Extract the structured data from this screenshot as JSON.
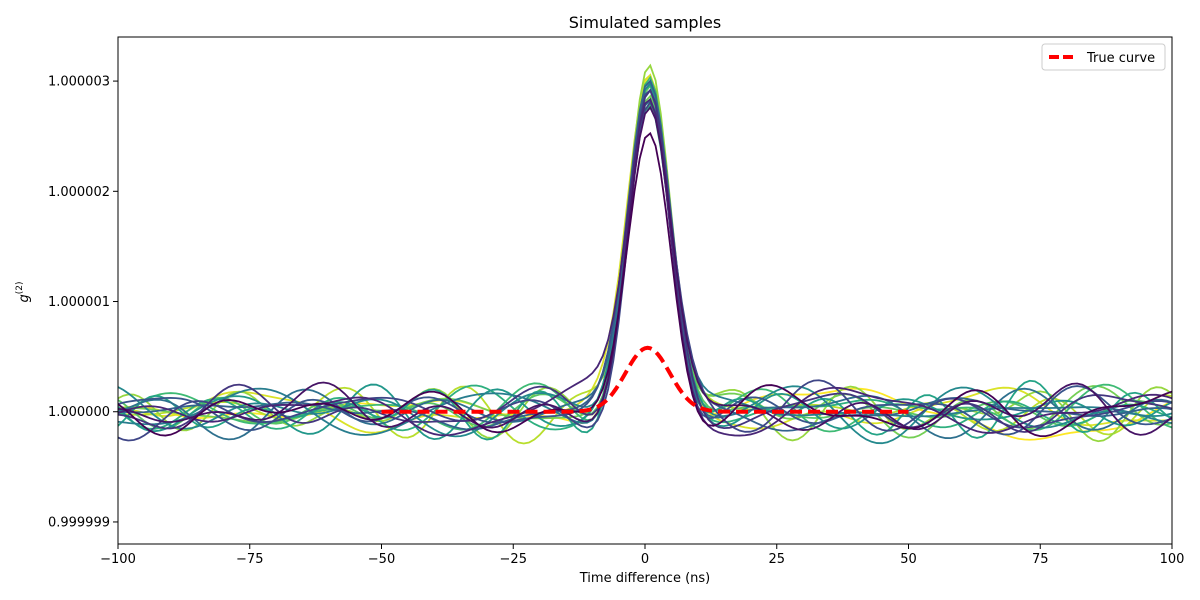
{
  "chart_data": {
    "type": "line",
    "title": "Simulated samples",
    "xlabel": "Time difference (ns)",
    "ylabel_main": "g",
    "ylabel_sup": "(2)",
    "xlim": [
      -100,
      100
    ],
    "ylim": [
      0.9999988,
      1.0000034
    ],
    "x_ticks": [
      -100,
      -75,
      -50,
      -25,
      0,
      25,
      50,
      75,
      100
    ],
    "x_tick_labels": [
      "−100",
      "−75",
      "−50",
      "−25",
      "0",
      "25",
      "50",
      "75",
      "100"
    ],
    "y_ticks": [
      0.999999,
      1.0,
      1.000001,
      1.000002,
      1.000003
    ],
    "y_tick_labels": [
      "0.999999",
      "1.000000",
      "1.000001",
      "1.000002",
      "1.000003"
    ],
    "grid": false,
    "legend": {
      "position": "top-right",
      "entries": [
        {
          "label": "True curve",
          "color": "#ff0000",
          "style": "dashed"
        }
      ]
    },
    "true_curve": {
      "name": "True curve",
      "color": "#ff0000",
      "x_range": [
        -50,
        50
      ],
      "baseline": 1.0,
      "peak_center": 0.5,
      "peak_height": 5.8e-07,
      "peak_sigma": 4.2
    },
    "sample_series": {
      "count": 20,
      "colormap": "viridis",
      "x_range": [
        -100,
        100
      ],
      "baseline": 1.0,
      "noise_amplitude": 2.2e-07,
      "peak_center": 0.8,
      "peak_sigma": 4.0,
      "peak_heights": [
        3.1e-06,
        3e-06,
        2.85e-06,
        3.15e-06,
        2.9e-06,
        2.95e-06,
        3.05e-06,
        2.75e-06,
        2.9e-06,
        2.8e-06,
        3e-06,
        2.95e-06,
        2.85e-06,
        2.95e-06,
        2.9e-06,
        2.8e-06,
        2.9e-06,
        2.85e-06,
        2.7e-06,
        2.5e-06
      ]
    }
  }
}
